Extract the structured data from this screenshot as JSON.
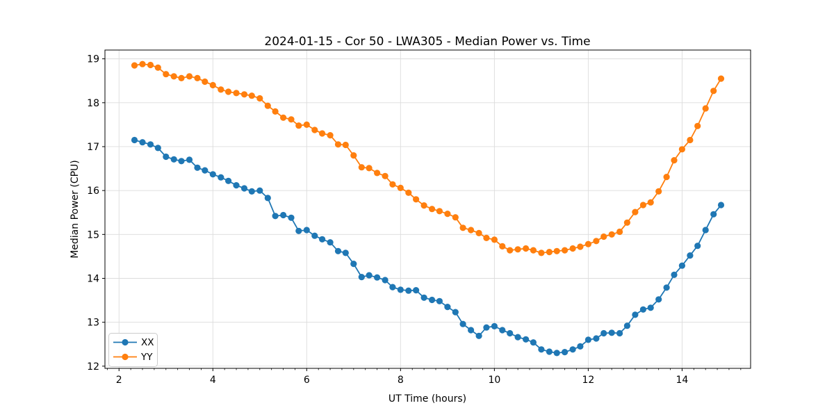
{
  "chart_data": {
    "type": "line",
    "title": "2024-01-15 - Cor 50 - LWA305 - Median Power vs. Time",
    "xlabel": "UT Time (hours)",
    "ylabel": "Median Power (CPU)",
    "xlim": [
      1.7,
      15.46
    ],
    "ylim": [
      11.95,
      19.2
    ],
    "x_ticks": [
      2,
      4,
      6,
      8,
      10,
      12,
      14
    ],
    "y_ticks": [
      12,
      13,
      14,
      15,
      16,
      17,
      18,
      19
    ],
    "x_minor_step": 0.25,
    "grid": true,
    "legend_position": "lower left",
    "marker": "circle",
    "x": [
      2.33,
      2.5,
      2.67,
      2.83,
      3.0,
      3.17,
      3.33,
      3.5,
      3.67,
      3.83,
      4.0,
      4.17,
      4.33,
      4.5,
      4.67,
      4.83,
      5.0,
      5.17,
      5.33,
      5.5,
      5.67,
      5.83,
      6.0,
      6.17,
      6.33,
      6.5,
      6.67,
      6.83,
      7.0,
      7.17,
      7.33,
      7.5,
      7.67,
      7.83,
      8.0,
      8.17,
      8.33,
      8.5,
      8.67,
      8.83,
      9.0,
      9.17,
      9.33,
      9.5,
      9.67,
      9.83,
      10.0,
      10.17,
      10.33,
      10.5,
      10.67,
      10.83,
      11.0,
      11.17,
      11.33,
      11.5,
      11.67,
      11.83,
      12.0,
      12.17,
      12.33,
      12.5,
      12.67,
      12.83,
      13.0,
      13.17,
      13.33,
      13.5,
      13.67,
      13.83,
      14.0,
      14.17,
      14.33,
      14.5,
      14.67,
      14.83
    ],
    "series": [
      {
        "name": "XX",
        "color": "#1f77b4",
        "values": [
          17.15,
          17.1,
          17.05,
          16.97,
          16.77,
          16.71,
          16.67,
          16.7,
          16.52,
          16.46,
          16.37,
          16.3,
          16.22,
          16.12,
          16.05,
          15.98,
          16.0,
          15.83,
          15.42,
          15.44,
          15.38,
          15.08,
          15.1,
          14.97,
          14.89,
          14.82,
          14.62,
          14.58,
          14.33,
          14.03,
          14.07,
          14.02,
          13.96,
          13.8,
          13.74,
          13.72,
          13.73,
          13.56,
          13.51,
          13.48,
          13.35,
          13.23,
          12.96,
          12.82,
          12.69,
          12.88,
          12.91,
          12.82,
          12.75,
          12.66,
          12.61,
          12.54,
          12.38,
          12.33,
          12.3,
          12.32,
          12.38,
          12.45,
          12.6,
          12.63,
          12.75,
          12.76,
          12.75,
          12.92,
          13.17,
          13.29,
          13.33,
          13.52,
          13.79,
          14.08,
          14.29,
          14.52,
          14.74,
          15.1,
          15.46,
          15.67
        ]
      },
      {
        "name": "YY",
        "color": "#ff7f0e",
        "values": [
          18.85,
          18.88,
          18.86,
          18.8,
          18.65,
          18.6,
          18.56,
          18.6,
          18.56,
          18.48,
          18.4,
          18.3,
          18.25,
          18.22,
          18.19,
          18.16,
          18.1,
          17.93,
          17.8,
          17.66,
          17.62,
          17.48,
          17.5,
          17.38,
          17.3,
          17.26,
          17.05,
          17.04,
          16.8,
          16.53,
          16.51,
          16.4,
          16.33,
          16.14,
          16.06,
          15.95,
          15.8,
          15.66,
          15.58,
          15.53,
          15.47,
          15.39,
          15.15,
          15.1,
          15.03,
          14.92,
          14.88,
          14.73,
          14.64,
          14.66,
          14.68,
          14.64,
          14.58,
          14.6,
          14.62,
          14.64,
          14.68,
          14.72,
          14.78,
          14.85,
          14.95,
          15.0,
          15.06,
          15.27,
          15.51,
          15.67,
          15.73,
          15.98,
          16.31,
          16.69,
          16.94,
          17.15,
          17.47,
          17.87,
          18.27,
          18.55
        ]
      }
    ]
  }
}
